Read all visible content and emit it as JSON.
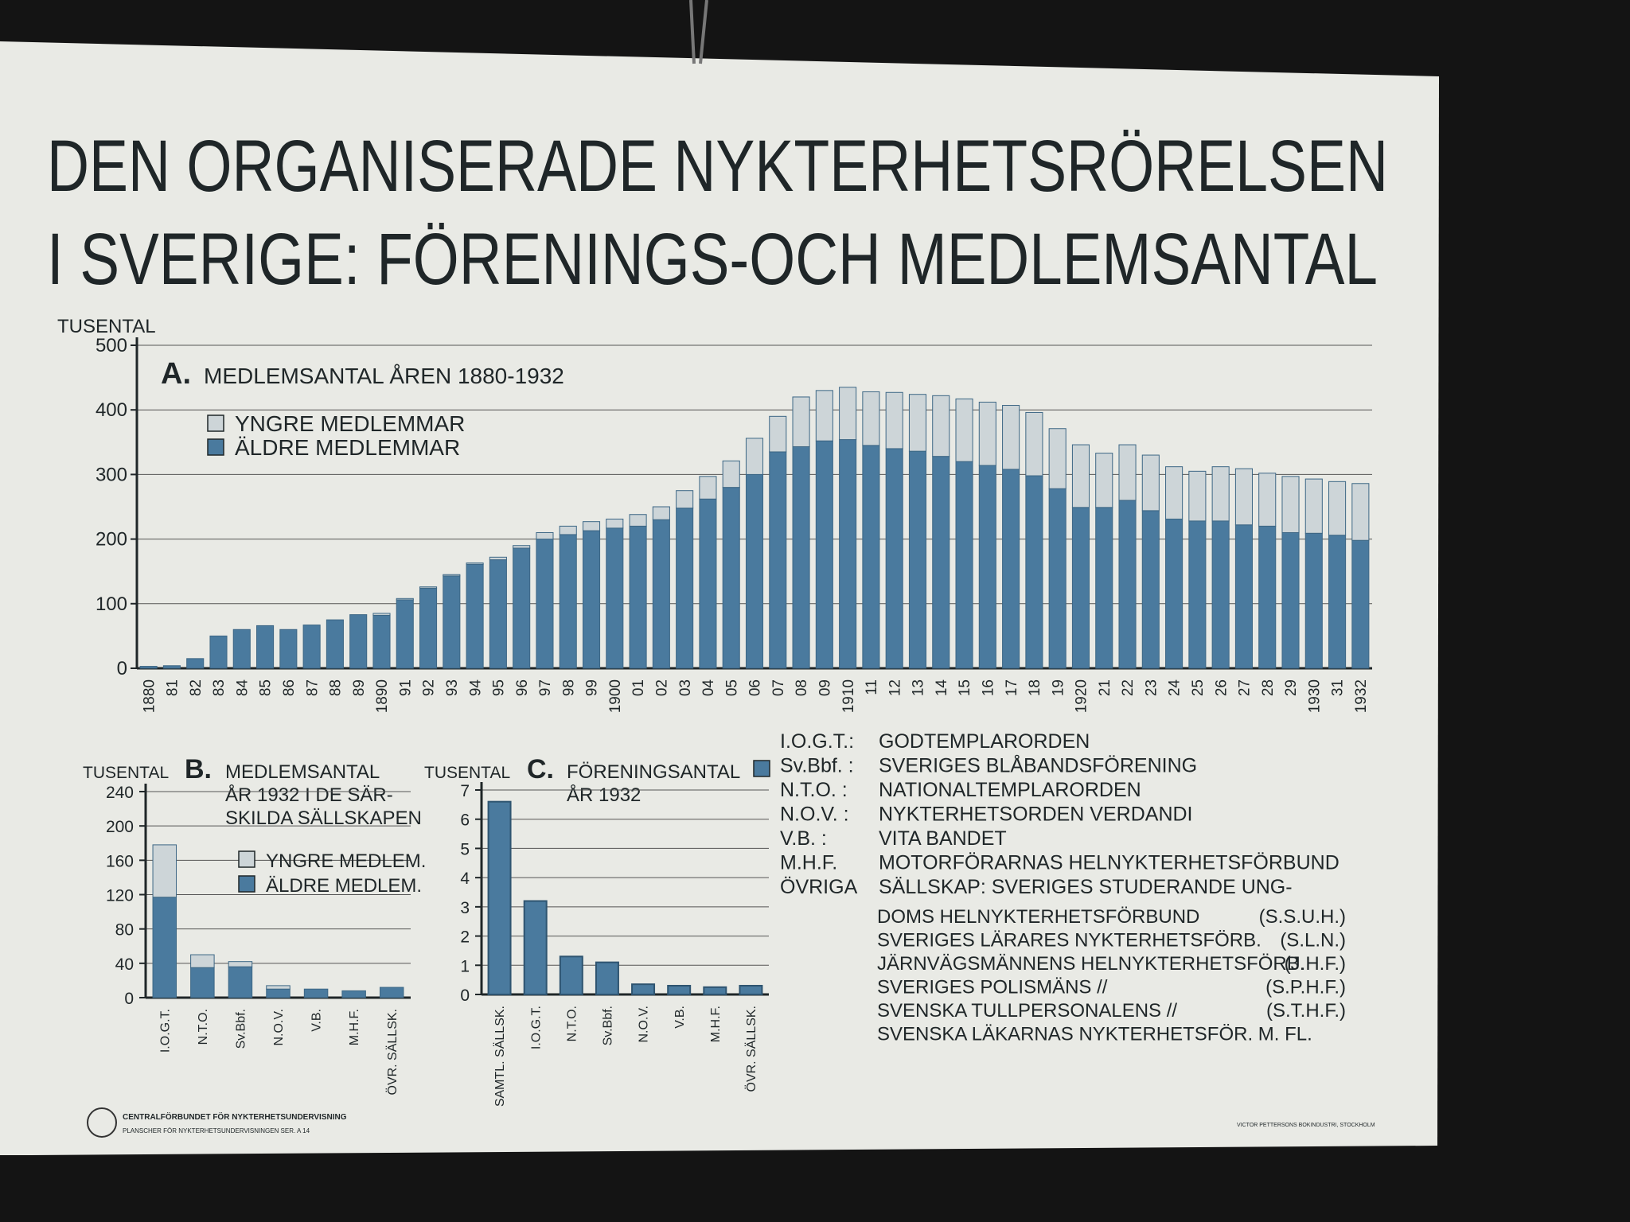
{
  "title": [
    "DEN ORGANISERADE NYKTERHETSRÖRELSEN",
    "I SVERIGE: FÖRENINGS-OCH MEDLEMSANTAL"
  ],
  "chart_data": [
    {
      "type": "bar",
      "stacked": true,
      "label": "A.",
      "title": [
        "MEDLEMSANTAL ÅREN 1880-1932"
      ],
      "ylabel": "TUSENTAL",
      "categories": [
        "1880",
        "81",
        "82",
        "83",
        "84",
        "85",
        "86",
        "87",
        "88",
        "89",
        "1890",
        "91",
        "92",
        "93",
        "94",
        "95",
        "96",
        "97",
        "98",
        "99",
        "1900",
        "01",
        "02",
        "03",
        "04",
        "05",
        "06",
        "07",
        "08",
        "09",
        "1910",
        "11",
        "12",
        "13",
        "14",
        "15",
        "16",
        "17",
        "18",
        "19",
        "1920",
        "21",
        "22",
        "23",
        "24",
        "25",
        "26",
        "27",
        "28",
        "29",
        "1930",
        "31",
        "1932"
      ],
      "series": [
        {
          "name": "YNGRE MEDLEMMAR",
          "color": "#cdd5d8",
          "values": [
            0,
            0,
            0,
            0,
            0,
            0,
            0,
            0,
            0,
            0,
            3,
            2,
            2,
            2,
            2,
            4,
            4,
            10,
            13,
            14,
            14,
            18,
            20,
            27,
            35,
            41,
            56,
            55,
            77,
            78,
            81,
            83,
            87,
            88,
            94,
            97,
            98,
            99,
            98,
            93,
            97,
            84,
            86,
            86,
            81,
            77,
            84,
            87,
            82,
            87,
            84,
            83,
            88
          ]
        },
        {
          "name": "ÄLDRE MEDLEMMAR",
          "color": "#4a7a9e",
          "values": [
            3,
            4,
            15,
            50,
            60,
            66,
            60,
            67,
            75,
            83,
            82,
            106,
            124,
            143,
            161,
            168,
            186,
            200,
            207,
            213,
            217,
            220,
            230,
            248,
            262,
            280,
            300,
            335,
            343,
            352,
            354,
            345,
            340,
            336,
            328,
            320,
            314,
            308,
            298,
            278,
            249,
            249,
            260,
            244,
            231,
            228,
            228,
            222,
            220,
            210,
            209,
            206,
            198
          ]
        }
      ],
      "ylim": [
        0,
        500
      ],
      "yticks": [
        0,
        100,
        200,
        300,
        400,
        500
      ],
      "grid": true
    },
    {
      "type": "bar",
      "stacked": true,
      "label": "B.",
      "title": [
        "MEDLEMSANTAL",
        "ÅR 1932 I DE SÄR-",
        "SKILDA SÄLLSKAPEN"
      ],
      "ylabel": "TUSENTAL",
      "categories": [
        "I.O.G.T.",
        "N.T.O.",
        "Sv.Bbf.",
        "N.O.V.",
        "V.B.",
        "M.H.F.",
        "ÖVR. SÄLLSK."
      ],
      "series": [
        {
          "name": "YNGRE MEDLEM.",
          "color": "#cdd5d8",
          "values": [
            61,
            15,
            6,
            4,
            0,
            0,
            0
          ]
        },
        {
          "name": "ÄLDRE MEDLEM.",
          "color": "#4a7a9e",
          "values": [
            117,
            35,
            36,
            10,
            10,
            8,
            12
          ]
        }
      ],
      "ylim": [
        0,
        240
      ],
      "yticks": [
        0,
        40,
        80,
        120,
        160,
        200,
        240
      ],
      "grid": true
    },
    {
      "type": "bar",
      "label": "C.",
      "title": [
        "FÖRENINGSANTAL",
        "ÅR 1932"
      ],
      "ylabel": "TUSENTAL",
      "categories": [
        "SAMTL. SÄLLSK.",
        "I.O.G.T.",
        "N.T.O.",
        "Sv.Bbf.",
        "N.O.V.",
        "V.B.",
        "M.H.F.",
        "ÖVR. SÄLLSK."
      ],
      "values": [
        6.6,
        3.2,
        1.3,
        1.1,
        0.35,
        0.3,
        0.25,
        0.3
      ],
      "color": "#4a7a9e",
      "ylim": [
        0,
        7
      ],
      "yticks": [
        0,
        1,
        2,
        3,
        4,
        5,
        6,
        7
      ],
      "grid": true
    }
  ],
  "abbreviations": [
    {
      "abbr": "I.O.G.T.:",
      "name": "GODTEMPLARORDEN"
    },
    {
      "abbr": "Sv.Bbf. :",
      "name": "SVERIGES BLÅBANDSFÖRENING"
    },
    {
      "abbr": "N.T.O. :",
      "name": "NATIONALTEMPLARORDEN"
    },
    {
      "abbr": "N.O.V. :",
      "name": "NYKTERHETSORDEN VERDANDI"
    },
    {
      "abbr": "V.B. :",
      "name": "VITA BANDET"
    },
    {
      "abbr": "M.H.F.",
      "name": "MOTORFÖRARNAS HELNYKTERHETSFÖRBUND"
    },
    {
      "abbr": "ÖVRIGA",
      "name": "SÄLLSKAP: SVERIGES STUDERANDE UNG-"
    }
  ],
  "other_societies": [
    {
      "text": "DOMS HELNYKTERHETSFÖRBUND",
      "code": "(S.S.U.H.)"
    },
    {
      "text": "SVERIGES LÄRARES NYKTERHETSFÖRB.",
      "code": "(S.L.N.)"
    },
    {
      "text": "JÄRNVÄGSMÄNNENS HELNYKTERHETSFÖRB.",
      "code": "(J.H.F.)"
    },
    {
      "text": "SVERIGES POLISMÄNS //",
      "code": "(S.P.H.F.)"
    },
    {
      "text": "SVENSKA TULLPERSONALENS //",
      "code": "(S.T.H.F.)"
    },
    {
      "text": "SVENSKA LÄKARNAS NYKTERHETSFÖR. M. FL."
    }
  ],
  "footer": {
    "publisher": "CENTRALFÖRBUNDET FÖR NYKTERHETSUNDERVISNING",
    "series": "PLANSCHER FÖR NYKTERHETSUNDERVISNINGEN SER. A 14",
    "printer": "VICTOR PETTERSONS BOKINDUSTRI, STOCKHOLM"
  }
}
